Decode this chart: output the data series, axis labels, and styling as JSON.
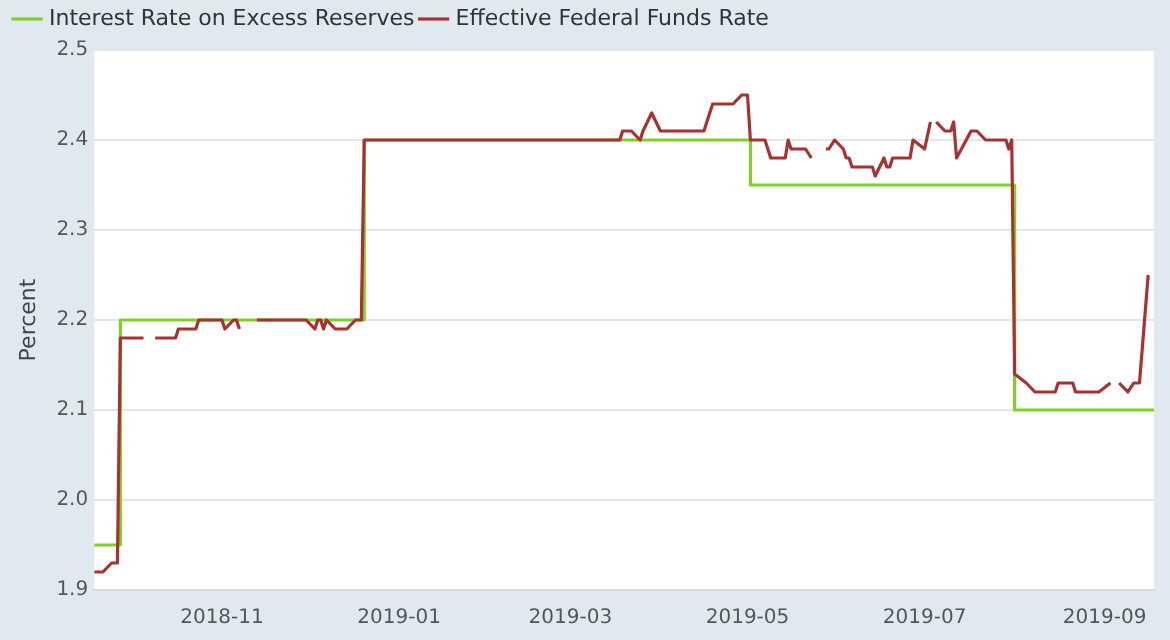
{
  "chart_data": {
    "type": "line",
    "ylabel": "Percent",
    "legend": "top left",
    "grid": "y",
    "marker": "none",
    "xlim": [
      "2018-09-18",
      "2019-09-18"
    ],
    "xticks": [
      "2018-11",
      "2019-01",
      "2019-03",
      "2019-05",
      "2019-07",
      "2019-09"
    ],
    "ylim": [
      1.9,
      2.5
    ],
    "yticks": [
      1.9,
      {
        "value": 2,
        "label": "2.0"
      },
      2.1,
      2.2,
      2.3,
      2.4,
      2.5
    ],
    "series": [
      {
        "name": "Interest Rate on Excess Reserves",
        "type": "step",
        "color": "#7fd12a",
        "x": [
          "2018-09-18",
          "2018-09-27",
          "2018-12-20",
          "2019-05-02",
          "2019-08-01",
          "2019-09-18"
        ],
        "values": [
          1.95,
          2.2,
          2.4,
          2.35,
          2.1,
          2.1
        ]
      },
      {
        "name": "Effective Federal Funds Rate",
        "type": "line",
        "color": "#a83232",
        "x": [
          "2018-09-18",
          "2018-09-21",
          "2018-09-24",
          "2018-09-26",
          "2018-09-27",
          "2018-10-05",
          "2018-10-08",
          "2018-10-09",
          "2018-10-16",
          "2018-10-17",
          "2018-10-23",
          "2018-10-24",
          "2018-11-01",
          "2018-11-02",
          "2018-11-05",
          "2018-11-06",
          "2018-11-07",
          "2018-11-09",
          "2018-11-13",
          "2018-11-30",
          "2018-12-03",
          "2018-12-04",
          "2018-12-05",
          "2018-12-06",
          "2018-12-07",
          "2018-12-10",
          "2018-12-14",
          "2018-12-17",
          "2018-12-19",
          "2018-12-20",
          "2019-03-18",
          "2019-03-19",
          "2019-03-22",
          "2019-03-25",
          "2019-03-26",
          "2019-03-29",
          "2019-04-01",
          "2019-04-16",
          "2019-04-19",
          "2019-04-26",
          "2019-04-29",
          "2019-05-01",
          "2019-05-02",
          "2019-05-07",
          "2019-05-09",
          "2019-05-14",
          "2019-05-15",
          "2019-05-16",
          "2019-05-21",
          "2019-05-23",
          "2019-05-24",
          "2019-05-28",
          "2019-05-29",
          "2019-05-31",
          "2019-06-03",
          "2019-06-04",
          "2019-06-05",
          "2019-06-06",
          "2019-06-13",
          "2019-06-14",
          "2019-06-17",
          "2019-06-18",
          "2019-06-19",
          "2019-06-20",
          "2019-06-26",
          "2019-06-27",
          "2019-07-01",
          "2019-07-03",
          "2019-07-04",
          "2019-07-05",
          "2019-07-08",
          "2019-07-10",
          "2019-07-11",
          "2019-07-12",
          "2019-07-17",
          "2019-07-19",
          "2019-07-22",
          "2019-07-29",
          "2019-07-30",
          "2019-07-31",
          "2019-08-01",
          "2019-08-05",
          "2019-08-08",
          "2019-08-15",
          "2019-08-16",
          "2019-08-21",
          "2019-08-22",
          "2019-08-30",
          "2019-09-03",
          "2019-09-04",
          "2019-09-06",
          "2019-09-09",
          "2019-09-11",
          "2019-09-13",
          "2019-09-16"
        ],
        "values": [
          1.92,
          1.92,
          1.93,
          1.93,
          2.18,
          2.18,
          null,
          2.18,
          2.18,
          2.19,
          2.19,
          2.2,
          2.2,
          2.19,
          2.2,
          2.2,
          2.19,
          null,
          2.2,
          2.2,
          2.19,
          2.2,
          2.2,
          2.19,
          2.2,
          2.19,
          2.19,
          2.2,
          2.2,
          2.4,
          2.4,
          2.41,
          2.41,
          2.4,
          2.41,
          2.43,
          2.41,
          2.41,
          2.44,
          2.44,
          2.45,
          2.45,
          2.4,
          2.4,
          2.38,
          2.38,
          2.4,
          2.39,
          2.39,
          2.38,
          null,
          2.39,
          2.39,
          2.4,
          2.39,
          2.38,
          2.38,
          2.37,
          2.37,
          2.36,
          2.38,
          2.37,
          2.37,
          2.38,
          2.38,
          2.4,
          2.39,
          2.42,
          null,
          2.42,
          2.41,
          2.41,
          2.42,
          2.38,
          2.41,
          2.41,
          2.4,
          2.4,
          2.39,
          2.4,
          2.14,
          2.13,
          2.12,
          2.12,
          2.13,
          2.13,
          2.12,
          2.12,
          2.13,
          null,
          2.13,
          2.12,
          2.13,
          2.13,
          2.25
        ]
      }
    ]
  }
}
